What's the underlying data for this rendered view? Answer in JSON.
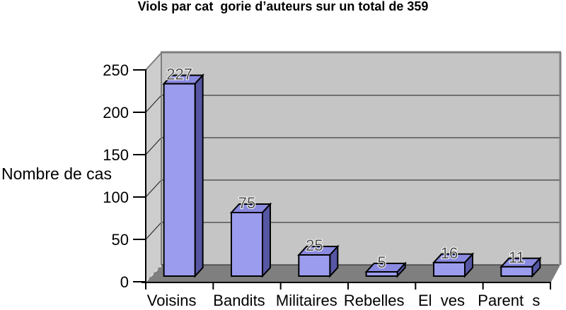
{
  "chart_data": {
    "type": "bar",
    "style": "3d-column",
    "title": "Viols par cat  gorie d’auteurs sur un total de 359",
    "ylabel": "Nombre de cas",
    "xlabel": "",
    "categories": [
      "Voisins",
      "Bandits",
      "Militaires",
      "Rebelles",
      "El  ves",
      "Parent  s"
    ],
    "values": [
      227,
      75,
      25,
      5,
      16,
      11
    ],
    "total": 359,
    "ylim": [
      0,
      250
    ],
    "ytick_step": 50,
    "grid": true,
    "legend": false,
    "data_labels": true,
    "colors": {
      "bar_front": "#9c9cee",
      "bar_top": "#8a8ae0",
      "bar_side": "#5656a4",
      "bar_outline": "#000000",
      "back_wall": "#c5c5c5",
      "left_wall": "#cdcdcd",
      "floor": "#7f7f7f",
      "frame": "#7f7f7f",
      "gridline": "#1a1a1a",
      "axis_text": "#000000",
      "value_label": "#4d4d4d",
      "background": "#ffffff"
    }
  }
}
